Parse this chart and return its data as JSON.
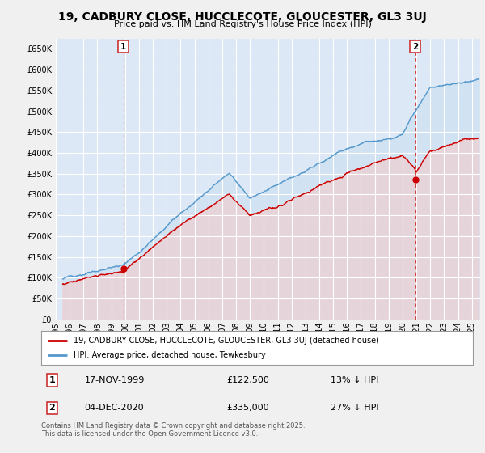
{
  "title": "19, CADBURY CLOSE, HUCCLECOTE, GLOUCESTER, GL3 3UJ",
  "subtitle": "Price paid vs. HM Land Registry's House Price Index (HPI)",
  "legend_label_red": "19, CADBURY CLOSE, HUCCLECOTE, GLOUCESTER, GL3 3UJ (detached house)",
  "legend_label_blue": "HPI: Average price, detached house, Tewkesbury",
  "annotation1_date": "17-NOV-1999",
  "annotation1_price": "£122,500",
  "annotation1_note": "13% ↓ HPI",
  "annotation2_date": "04-DEC-2020",
  "annotation2_price": "£335,000",
  "annotation2_note": "27% ↓ HPI",
  "footer": "Contains HM Land Registry data © Crown copyright and database right 2025.\nThis data is licensed under the Open Government Licence v3.0.",
  "ylim": [
    0,
    675000
  ],
  "yticks": [
    0,
    50000,
    100000,
    150000,
    200000,
    250000,
    300000,
    350000,
    400000,
    450000,
    500000,
    550000,
    600000,
    650000
  ],
  "plot_bg_color": "#dce8f5",
  "fig_bg_color": "#f0f0f0",
  "red_color": "#cc0000",
  "blue_color": "#5599cc",
  "red_fill": "#f5cccc",
  "blue_fill": "#c8ddf0",
  "sale1_year": 1999.875,
  "sale1_price": 122500,
  "sale2_year": 2020.917,
  "sale2_price": 335000,
  "xstart": 1995.5,
  "xend": 2025.5
}
